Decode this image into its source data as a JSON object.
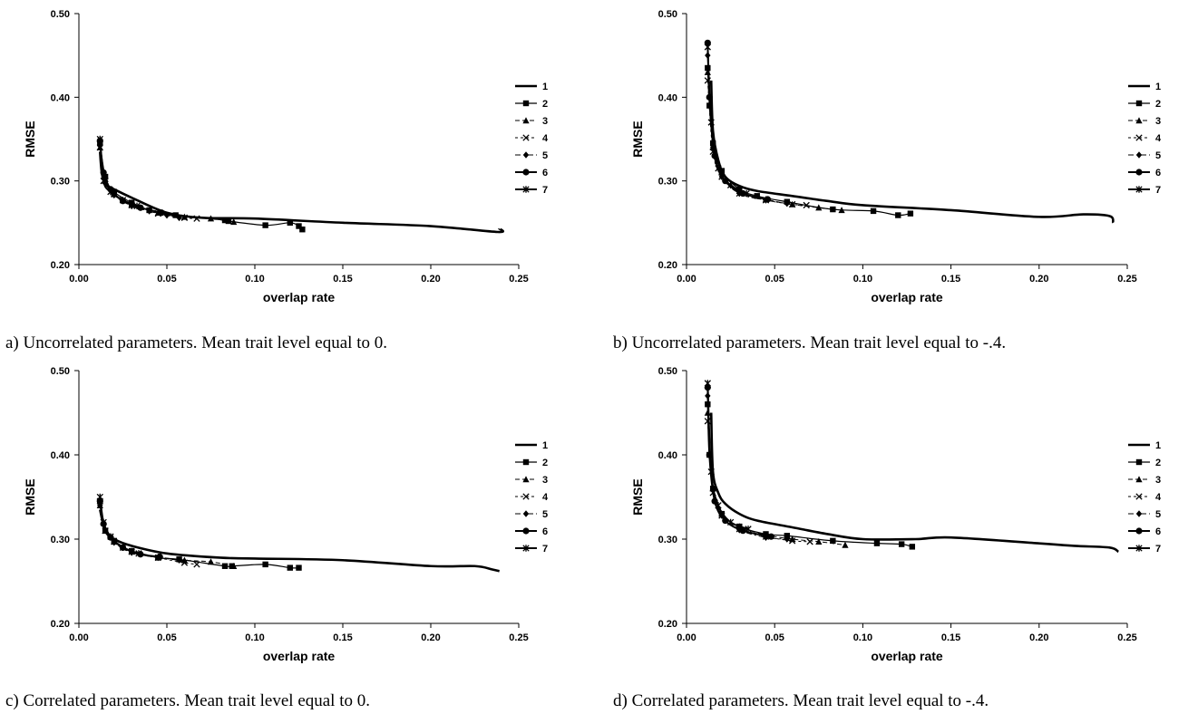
{
  "chart_data": [
    {
      "type": "line",
      "caption": "a) Uncorrelated parameters. Mean trait level equal to 0.",
      "xlabel": "overlap rate",
      "ylabel": "RMSE",
      "xlim": [
        0,
        0.25
      ],
      "ylim": [
        0.2,
        0.5
      ],
      "xticks": [
        "0.00",
        "0.05",
        "0.10",
        "0.15",
        "0.20",
        "0.25"
      ],
      "yticks": [
        "0.20",
        "0.30",
        "0.40",
        "0.50"
      ],
      "legend": "right",
      "series": [
        {
          "name": "1",
          "marker": "none",
          "x": [
            0.012,
            0.013,
            0.015,
            0.02,
            0.03,
            0.05,
            0.07,
            0.1,
            0.15,
            0.2,
            0.238,
            0.239
          ],
          "y": [
            0.335,
            0.31,
            0.296,
            0.29,
            0.28,
            0.262,
            0.256,
            0.255,
            0.25,
            0.246,
            0.239,
            0.243
          ]
        },
        {
          "name": "2",
          "marker": "square",
          "x": [
            0.012,
            0.015,
            0.02,
            0.03,
            0.04,
            0.055,
            0.083,
            0.085,
            0.106,
            0.12,
            0.125,
            0.127
          ],
          "y": [
            0.345,
            0.305,
            0.287,
            0.274,
            0.265,
            0.259,
            0.253,
            0.252,
            0.247,
            0.25,
            0.246,
            0.242
          ]
        },
        {
          "name": "3",
          "marker": "triangle",
          "x": [
            0.012,
            0.015,
            0.02,
            0.03,
            0.045,
            0.06,
            0.075,
            0.088
          ],
          "y": [
            0.34,
            0.302,
            0.285,
            0.272,
            0.262,
            0.257,
            0.255,
            0.251
          ]
        },
        {
          "name": "4",
          "marker": "x",
          "x": [
            0.012,
            0.015,
            0.02,
            0.03,
            0.045,
            0.06,
            0.067
          ],
          "y": [
            0.34,
            0.3,
            0.284,
            0.271,
            0.261,
            0.256,
            0.255
          ]
        },
        {
          "name": "5",
          "marker": "diamond",
          "x": [
            0.012,
            0.015,
            0.02,
            0.03,
            0.04,
            0.05,
            0.057
          ],
          "y": [
            0.342,
            0.3,
            0.283,
            0.27,
            0.264,
            0.259,
            0.256
          ]
        },
        {
          "name": "6",
          "marker": "circle",
          "x": [
            0.012,
            0.014,
            0.018,
            0.025,
            0.035,
            0.047
          ],
          "y": [
            0.348,
            0.31,
            0.29,
            0.276,
            0.268,
            0.262
          ]
        },
        {
          "name": "7",
          "marker": "star",
          "x": [
            0.012,
            0.014,
            0.018,
            0.025,
            0.033
          ],
          "y": [
            0.35,
            0.3,
            0.287,
            0.277,
            0.27
          ]
        }
      ]
    },
    {
      "type": "line",
      "caption": "b) Uncorrelated parameters. Mean trait level equal to -.4.",
      "xlabel": "overlap rate",
      "ylabel": "RMSE",
      "xlim": [
        0,
        0.25
      ],
      "ylim": [
        0.2,
        0.5
      ],
      "xticks": [
        "0.00",
        "0.05",
        "0.10",
        "0.15",
        "0.20",
        "0.25"
      ],
      "yticks": [
        "0.20",
        "0.30",
        "0.40",
        "0.50"
      ],
      "legend": "right",
      "series": [
        {
          "name": "1",
          "marker": "none",
          "x": [
            0.014,
            0.015,
            0.018,
            0.022,
            0.03,
            0.04,
            0.06,
            0.08,
            0.1,
            0.15,
            0.2,
            0.225,
            0.24,
            0.242
          ],
          "y": [
            0.42,
            0.36,
            0.325,
            0.305,
            0.294,
            0.288,
            0.282,
            0.276,
            0.271,
            0.265,
            0.257,
            0.26,
            0.258,
            0.25
          ]
        },
        {
          "name": "2",
          "marker": "square",
          "x": [
            0.012,
            0.013,
            0.015,
            0.02,
            0.03,
            0.04,
            0.057,
            0.083,
            0.106,
            0.12,
            0.127
          ],
          "y": [
            0.435,
            0.39,
            0.345,
            0.312,
            0.29,
            0.282,
            0.275,
            0.266,
            0.264,
            0.259,
            0.261
          ]
        },
        {
          "name": "3",
          "marker": "triangle",
          "x": [
            0.012,
            0.015,
            0.02,
            0.03,
            0.045,
            0.06,
            0.075,
            0.088
          ],
          "y": [
            0.43,
            0.34,
            0.31,
            0.288,
            0.278,
            0.272,
            0.268,
            0.265
          ]
        },
        {
          "name": "4",
          "marker": "x",
          "x": [
            0.012,
            0.015,
            0.02,
            0.03,
            0.045,
            0.06,
            0.068
          ],
          "y": [
            0.42,
            0.335,
            0.305,
            0.285,
            0.277,
            0.272,
            0.271
          ]
        },
        {
          "name": "5",
          "marker": "diamond",
          "x": [
            0.012,
            0.015,
            0.02,
            0.03,
            0.045,
            0.057
          ],
          "y": [
            0.45,
            0.34,
            0.305,
            0.285,
            0.277,
            0.273
          ]
        },
        {
          "name": "6",
          "marker": "circle",
          "x": [
            0.012,
            0.013,
            0.016,
            0.022,
            0.032,
            0.046
          ],
          "y": [
            0.465,
            0.4,
            0.33,
            0.3,
            0.285,
            0.278
          ]
        },
        {
          "name": "7",
          "marker": "star",
          "x": [
            0.012,
            0.014,
            0.018,
            0.025,
            0.034
          ],
          "y": [
            0.46,
            0.37,
            0.315,
            0.295,
            0.285
          ]
        }
      ]
    },
    {
      "type": "line",
      "caption": "c) Correlated parameters. Mean trait level equal to 0.",
      "xlabel": "overlap rate",
      "ylabel": "RMSE",
      "xlim": [
        0,
        0.25
      ],
      "ylim": [
        0.2,
        0.5
      ],
      "xticks": [
        "0.00",
        "0.05",
        "0.10",
        "0.15",
        "0.20",
        "0.25"
      ],
      "yticks": [
        "0.20",
        "0.30",
        "0.40",
        "0.50"
      ],
      "legend": "right",
      "series": [
        {
          "name": "1",
          "marker": "none",
          "x": [
            0.012,
            0.015,
            0.02,
            0.03,
            0.05,
            0.08,
            0.1,
            0.15,
            0.2,
            0.225,
            0.235,
            0.239
          ],
          "y": [
            0.335,
            0.31,
            0.3,
            0.292,
            0.283,
            0.278,
            0.277,
            0.275,
            0.268,
            0.268,
            0.264,
            0.262
          ]
        },
        {
          "name": "2",
          "marker": "square",
          "x": [
            0.012,
            0.015,
            0.02,
            0.03,
            0.045,
            0.057,
            0.083,
            0.087,
            0.106,
            0.12,
            0.125
          ],
          "y": [
            0.345,
            0.31,
            0.298,
            0.286,
            0.278,
            0.276,
            0.268,
            0.268,
            0.27,
            0.266,
            0.266
          ]
        },
        {
          "name": "3",
          "marker": "triangle",
          "x": [
            0.012,
            0.015,
            0.02,
            0.03,
            0.045,
            0.06,
            0.075,
            0.088
          ],
          "y": [
            0.34,
            0.31,
            0.297,
            0.286,
            0.279,
            0.275,
            0.273,
            0.268
          ]
        },
        {
          "name": "4",
          "marker": "x",
          "x": [
            0.012,
            0.015,
            0.02,
            0.03,
            0.045,
            0.06,
            0.067
          ],
          "y": [
            0.345,
            0.31,
            0.297,
            0.285,
            0.278,
            0.272,
            0.27
          ]
        },
        {
          "name": "5",
          "marker": "diamond",
          "x": [
            0.012,
            0.015,
            0.02,
            0.03,
            0.045,
            0.057
          ],
          "y": [
            0.34,
            0.31,
            0.296,
            0.284,
            0.278,
            0.275
          ]
        },
        {
          "name": "6",
          "marker": "circle",
          "x": [
            0.012,
            0.014,
            0.018,
            0.025,
            0.035,
            0.046
          ],
          "y": [
            0.345,
            0.318,
            0.302,
            0.29,
            0.282,
            0.279
          ]
        },
        {
          "name": "7",
          "marker": "star",
          "x": [
            0.012,
            0.014,
            0.018,
            0.025,
            0.034
          ],
          "y": [
            0.35,
            0.32,
            0.303,
            0.29,
            0.283
          ]
        }
      ]
    },
    {
      "type": "line",
      "caption": "d) Correlated  parameters. Mean trait level equal to -.4.",
      "xlabel": "overlap rate",
      "ylabel": "RMSE",
      "xlim": [
        0,
        0.25
      ],
      "ylim": [
        0.2,
        0.5
      ],
      "xticks": [
        "0.00",
        "0.05",
        "0.10",
        "0.15",
        "0.20",
        "0.25"
      ],
      "yticks": [
        "0.20",
        "0.30",
        "0.40",
        "0.50"
      ],
      "legend": "right",
      "series": [
        {
          "name": "1",
          "marker": "none",
          "x": [
            0.014,
            0.015,
            0.018,
            0.022,
            0.03,
            0.04,
            0.06,
            0.08,
            0.1,
            0.13,
            0.15,
            0.2,
            0.22,
            0.24,
            0.245
          ],
          "y": [
            0.45,
            0.38,
            0.355,
            0.342,
            0.33,
            0.322,
            0.314,
            0.306,
            0.3,
            0.3,
            0.302,
            0.295,
            0.292,
            0.29,
            0.285
          ]
        },
        {
          "name": "2",
          "marker": "square",
          "x": [
            0.012,
            0.013,
            0.015,
            0.02,
            0.03,
            0.045,
            0.057,
            0.083,
            0.108,
            0.122,
            0.128
          ],
          "y": [
            0.46,
            0.4,
            0.36,
            0.33,
            0.315,
            0.306,
            0.304,
            0.298,
            0.295,
            0.294,
            0.291
          ]
        },
        {
          "name": "3",
          "marker": "triangle",
          "x": [
            0.012,
            0.015,
            0.02,
            0.03,
            0.045,
            0.06,
            0.075,
            0.09
          ],
          "y": [
            0.45,
            0.36,
            0.33,
            0.315,
            0.305,
            0.3,
            0.297,
            0.293
          ]
        },
        {
          "name": "4",
          "marker": "x",
          "x": [
            0.012,
            0.015,
            0.02,
            0.03,
            0.045,
            0.06,
            0.07
          ],
          "y": [
            0.44,
            0.355,
            0.328,
            0.312,
            0.303,
            0.298,
            0.297
          ]
        },
        {
          "name": "5",
          "marker": "diamond",
          "x": [
            0.012,
            0.015,
            0.02,
            0.03,
            0.045,
            0.057
          ],
          "y": [
            0.47,
            0.36,
            0.328,
            0.311,
            0.302,
            0.3
          ]
        },
        {
          "name": "6",
          "marker": "circle",
          "x": [
            0.012,
            0.013,
            0.016,
            0.022,
            0.032,
            0.048
          ],
          "y": [
            0.48,
            0.4,
            0.345,
            0.322,
            0.31,
            0.303
          ]
        },
        {
          "name": "7",
          "marker": "star",
          "x": [
            0.012,
            0.014,
            0.018,
            0.025,
            0.035
          ],
          "y": [
            0.485,
            0.38,
            0.34,
            0.32,
            0.312
          ]
        }
      ]
    }
  ]
}
